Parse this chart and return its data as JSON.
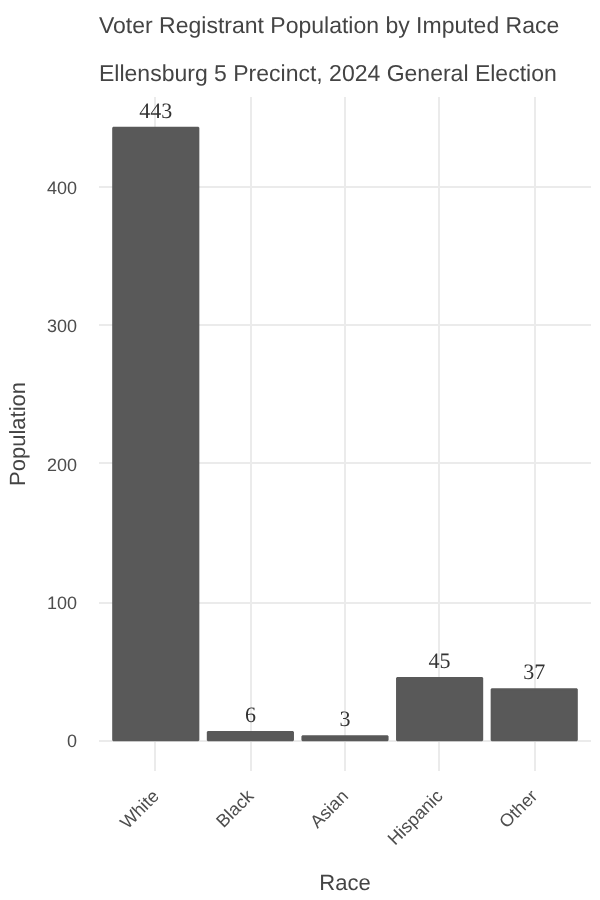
{
  "chart_data": {
    "type": "bar",
    "title": "Voter Registrant Population by Imputed Race",
    "subtitle": "Ellensburg 5 Precinct,  2024 General Election",
    "xlabel": "Race",
    "ylabel": "Population",
    "categories": [
      "White",
      "Black",
      "Asian",
      "Hispanic",
      "Other"
    ],
    "values": [
      443,
      6,
      3,
      45,
      37
    ],
    "color": "#595959",
    "ylim": [
      -22.15,
      465.15
    ],
    "yticks": [
      0,
      100,
      200,
      300,
      400
    ],
    "grid": true,
    "data_labels": true
  }
}
